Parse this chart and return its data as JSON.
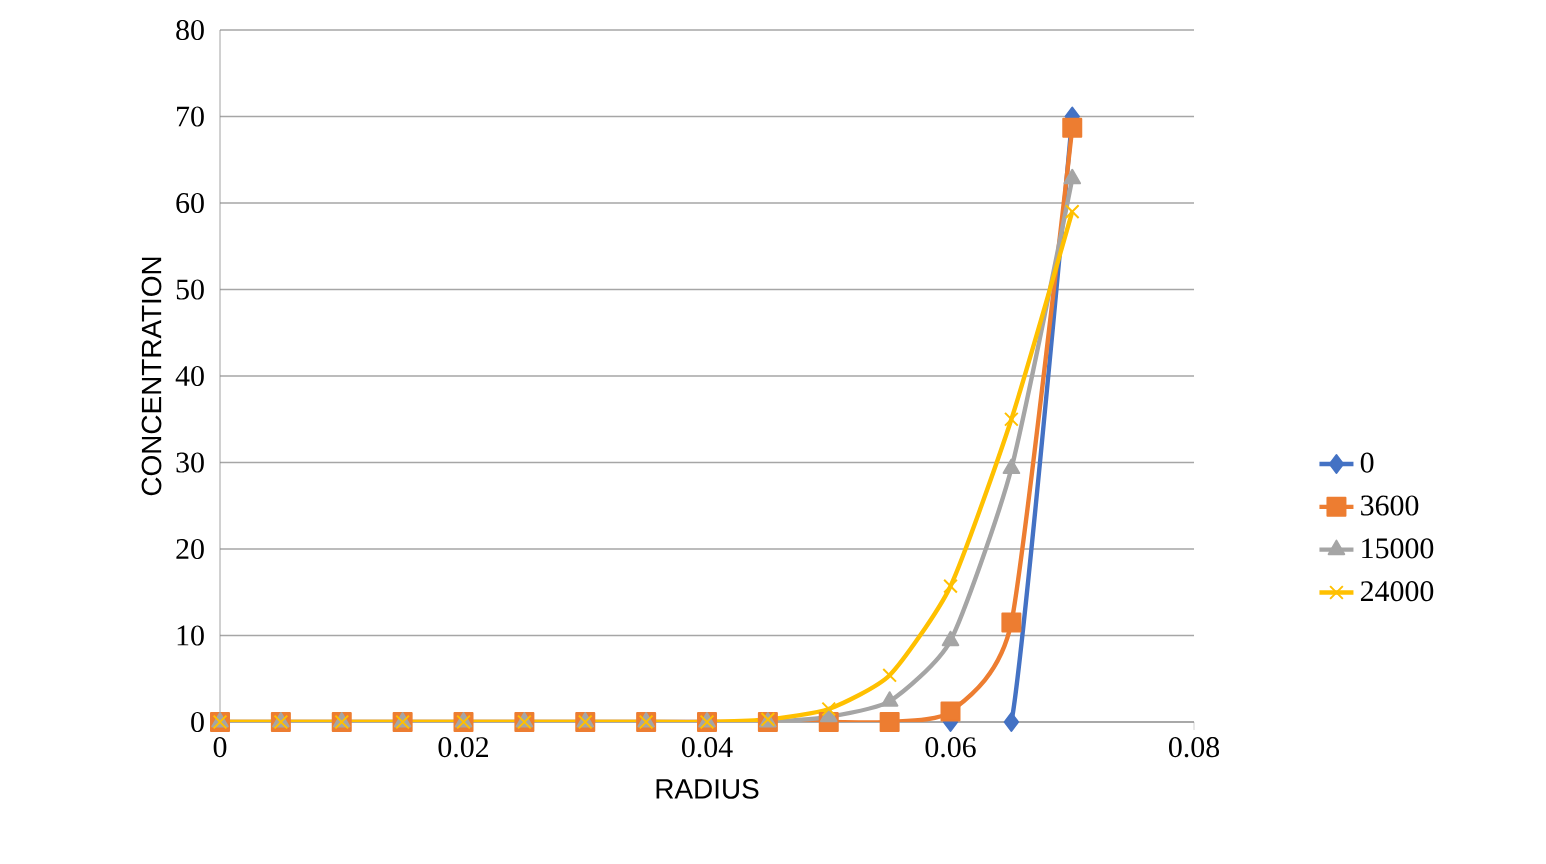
{
  "chart_data": {
    "type": "line",
    "xlabel": "RADIUS",
    "ylabel": "CONCENTRATION",
    "x": [
      0,
      0.005,
      0.01,
      0.015,
      0.02,
      0.025,
      0.03,
      0.035,
      0.04,
      0.045,
      0.05,
      0.055,
      0.06,
      0.065,
      0.07
    ],
    "series": [
      {
        "name": "0",
        "color": "#4472c4",
        "marker": "diamond",
        "values": [
          null,
          null,
          null,
          null,
          null,
          null,
          null,
          null,
          null,
          null,
          null,
          null,
          0,
          0,
          70
        ]
      },
      {
        "name": "3600",
        "color": "#ed7d31",
        "marker": "square",
        "values": [
          0,
          0,
          0,
          0,
          0,
          0,
          0,
          0,
          0,
          0,
          0,
          0,
          1.2,
          11.5,
          68.7
        ]
      },
      {
        "name": "15000",
        "color": "#a5a5a5",
        "marker": "triangle",
        "values": [
          0,
          0,
          0,
          0,
          0,
          0,
          0,
          0,
          0,
          0,
          0.6,
          2.4,
          9.4,
          29.3,
          62.8
        ]
      },
      {
        "name": "24000",
        "color": "#ffc000",
        "marker": "cross",
        "values": [
          0,
          0,
          0,
          0,
          0,
          0,
          0,
          0,
          0,
          0.3,
          1.5,
          5.4,
          15.7,
          35,
          59
        ]
      }
    ],
    "xlim": [
      0,
      0.08
    ],
    "xticks": [
      0,
      0.02,
      0.04,
      0.06,
      0.08
    ],
    "ylim": [
      0,
      80
    ],
    "yticks": [
      0,
      10,
      20,
      30,
      40,
      50,
      60,
      70,
      80
    ],
    "grid": "y",
    "legend": "right",
    "line_style": "solid"
  }
}
